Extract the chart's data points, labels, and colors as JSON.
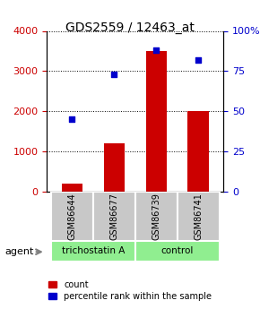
{
  "title": "GDS2559 / 12463_at",
  "samples": [
    "GSM86644",
    "GSM86677",
    "GSM86739",
    "GSM86741"
  ],
  "counts": [
    200,
    1200,
    3500,
    2000
  ],
  "percentiles": [
    45,
    73,
    88,
    82
  ],
  "groups": [
    "trichostatin A",
    "trichostatin A",
    "control",
    "control"
  ],
  "group_colors": {
    "trichostatin A": "#90EE90",
    "control": "#90EE90"
  },
  "bar_color": "#CC0000",
  "dot_color": "#0000CC",
  "left_ylim": [
    0,
    4000
  ],
  "right_ylim": [
    0,
    100
  ],
  "left_yticks": [
    0,
    1000,
    2000,
    3000,
    4000
  ],
  "right_yticks": [
    0,
    25,
    50,
    75,
    100
  ],
  "left_yticklabels": [
    "0",
    "1000",
    "2000",
    "3000",
    "4000"
  ],
  "right_yticklabels": [
    "0",
    "25",
    "50",
    "75",
    "100%"
  ],
  "left_tick_color": "#CC0000",
  "right_tick_color": "#0000CC",
  "legend_count_label": "count",
  "legend_pct_label": "percentile rank within the sample",
  "agent_label": "agent",
  "group_label_trichostatin": "trichostatin A",
  "group_label_control": "control",
  "sample_box_color": "#C8C8C8",
  "trichostatin_box_color": "#90EE90",
  "control_box_color": "#90EE90"
}
